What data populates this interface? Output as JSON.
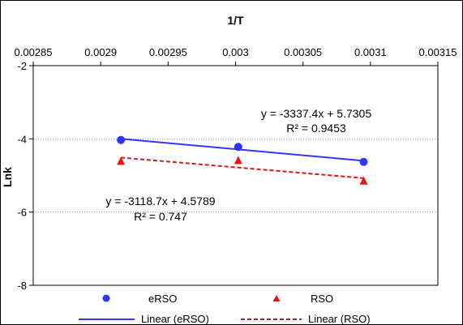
{
  "chart_data": {
    "type": "scatter",
    "title": "",
    "xlabel": "1/T",
    "ylabel": "Lnk",
    "x_axis_position": "top",
    "xlim": [
      0.00285,
      0.00315
    ],
    "ylim": [
      -8,
      -2
    ],
    "x_ticks": [
      "0.00285",
      "0.0029",
      "0.00295",
      "0.003",
      "0.00305",
      "0.0031",
      "0.00315"
    ],
    "y_ticks": [
      "-2",
      "-4",
      "-6",
      "-8"
    ],
    "grid": "horizontal dotted",
    "legend_position": "bottom",
    "series": [
      {
        "name": "eRSO",
        "marker": "circle",
        "color": "#3333FF",
        "x": [
          0.002915,
          0.003002,
          0.003095
        ],
        "y": [
          -4.03,
          -4.22,
          -4.63
        ],
        "trendline": {
          "name": "Linear (eRSO)",
          "style": "solid",
          "color": "#3333FF",
          "slope": -3337.4,
          "intercept": 5.7305,
          "equation": "y = -3337.4x + 5.7305",
          "r2": "R² = 0.9453"
        }
      },
      {
        "name": "RSO",
        "marker": "triangle",
        "color": "#EE1111",
        "x": [
          0.002915,
          0.003002,
          0.003095
        ],
        "y": [
          -4.62,
          -4.6,
          -5.16
        ],
        "trendline": {
          "name": "Linear (RSO)",
          "style": "dashed",
          "color": "#EE1111",
          "slope": -3118.7,
          "intercept": 4.5789,
          "equation": "y = -3118.7x + 4.5789",
          "r2": "R² = 0.747"
        }
      }
    ]
  }
}
